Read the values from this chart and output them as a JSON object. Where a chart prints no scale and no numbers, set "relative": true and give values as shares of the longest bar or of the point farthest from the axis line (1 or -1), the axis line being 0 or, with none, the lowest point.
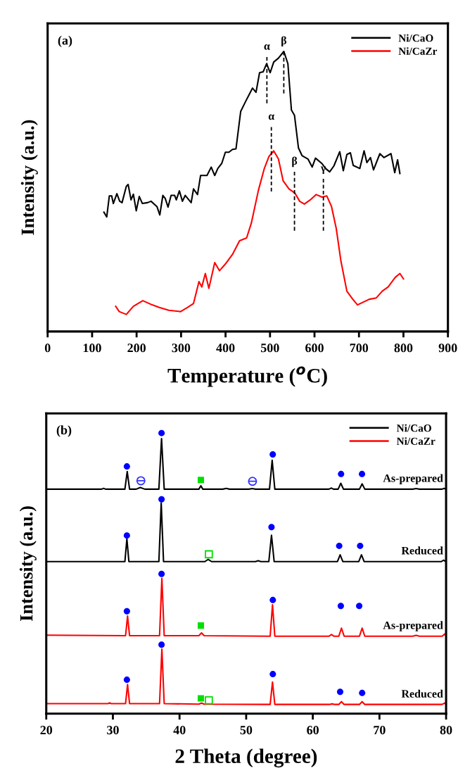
{
  "chart_data": [
    {
      "type": "line",
      "relative": true,
      "xlabel": "Temperature ($^{o}$C)",
      "ylabel": "Intensity (a.u.)",
      "xlim": [
        0,
        900
      ],
      "xticks": [
        0,
        100,
        200,
        300,
        400,
        500,
        600,
        700,
        800,
        900
      ],
      "tick_labels": "x",
      "legend": "top right",
      "grid": false,
      "annotations": [
        "(a)",
        {
          "text": "α",
          "x": 493,
          "y": 0.98
        },
        {
          "text": "β",
          "x": 531,
          "y": 1.0
        },
        {
          "text": "α",
          "x": 503,
          "y": 0.73
        },
        {
          "text": "β",
          "x": 555,
          "y": 0.57
        },
        {
          "text": "γ",
          "x": 620,
          "y": 0.545
        }
      ],
      "series": [
        {
          "name": "Ni/CaO",
          "color": "#000000",
          "x": [
            126.5,
            132.9,
            138.7,
            144,
            147.7,
            155.7,
            162,
            167.3,
            176.9,
            181,
            187.5,
            192.8,
            199.2,
            206,
            213,
            224.6,
            232.5,
            245.8,
            252.2,
            259.1,
            264.4,
            270.7,
            277.6,
            285.6,
            289.3,
            296.2,
            303.1,
            309.4,
            322.7,
            328,
            337,
            343.9,
            358.3,
            367.8,
            375.7,
            382.6,
            391.7,
            399.6,
            407.6,
            415.6,
            423.5,
            434.1,
            444.7,
            452.6,
            460.6,
            468.5,
            476.5,
            484.5,
            492.4,
            500.4,
            508.3,
            518.9,
            531.1,
            540.2,
            548.1,
            555,
            564,
            572,
            585.2,
            594.8,
            602.2,
            617.1,
            625,
            634.1,
            643.6,
            656.8,
            664.8,
            672.8,
            680.7,
            687.1,
            701.9,
            711.5,
            717.8,
            725.8,
            732.7,
            747,
            756,
            772,
            780.4,
            786.8,
            792
          ],
          "values": [
            0.426,
            0.409,
            0.484,
            0.484,
            0.457,
            0.492,
            0.465,
            0.46,
            0.518,
            0.525,
            0.47,
            0.49,
            0.431,
            0.482,
            0.457,
            0.46,
            0.465,
            0.446,
            0.416,
            0.486,
            0.475,
            0.444,
            0.486,
            0.486,
            0.47,
            0.502,
            0.465,
            0.486,
            0.46,
            0.509,
            0.489,
            0.557,
            0.557,
            0.587,
            0.557,
            0.582,
            0.601,
            0.64,
            0.64,
            0.65,
            0.652,
            0.786,
            0.82,
            0.844,
            0.869,
            0.854,
            0.924,
            0.927,
            0.956,
            0.924,
            0.962,
            0.976,
            1.0,
            0.956,
            0.791,
            0.772,
            0.655,
            0.628,
            0.616,
            0.587,
            0.619,
            0.599,
            0.582,
            0.57,
            0.591,
            0.642,
            0.574,
            0.632,
            0.638,
            0.593,
            0.582,
            0.645,
            0.603,
            0.621,
            0.577,
            0.635,
            0.621,
            0.635,
            0.567,
            0.613,
            0.564
          ]
        },
        {
          "name": "Ni/CaZr",
          "color": "#ff0000",
          "x": [
            153,
            161,
            176.9,
            192.8,
            214,
            235.2,
            251.1,
            272.4,
            298.9,
            314.8,
            328,
            340.3,
            346.6,
            354.6,
            362.5,
            375.7,
            386.4,
            399.6,
            415.6,
            431.5,
            447.4,
            458,
            473.9,
            487.2,
            497.7,
            508.3,
            518.9,
            529.5,
            542.7,
            556,
            566.6,
            577.2,
            590.5,
            603.8,
            617.1,
            627.7,
            638.3,
            648.9,
            659.5,
            672.8,
            686.1,
            696.7,
            709.8,
            723,
            739,
            752.3,
            765.5,
            781.4,
            792,
            800
          ],
          "values": [
            0.09,
            0.071,
            0.061,
            0.09,
            0.11,
            0.095,
            0.086,
            0.076,
            0.071,
            0.086,
            0.1,
            0.178,
            0.159,
            0.207,
            0.154,
            0.246,
            0.217,
            0.241,
            0.275,
            0.324,
            0.334,
            0.387,
            0.504,
            0.582,
            0.625,
            0.645,
            0.616,
            0.538,
            0.509,
            0.494,
            0.465,
            0.455,
            0.47,
            0.489,
            0.48,
            0.484,
            0.446,
            0.368,
            0.251,
            0.144,
            0.115,
            0.095,
            0.105,
            0.115,
            0.12,
            0.144,
            0.159,
            0.193,
            0.207,
            0.188
          ]
        },
        {
          "color": "#000000",
          "line_style": "dashed",
          "x": [
            493,
            493
          ],
          "values": [
            0.815,
            0.98
          ]
        },
        {
          "color": "#000000",
          "line_style": "dashed",
          "x": [
            531,
            531
          ],
          "values": [
            0.85,
            1.0
          ]
        },
        {
          "color": "#000000",
          "line_style": "dashed",
          "x": [
            503,
            503
          ],
          "values": [
            0.5,
            0.73
          ]
        },
        {
          "color": "#000000",
          "line_style": "dashed",
          "x": [
            555,
            555
          ],
          "values": [
            0.36,
            0.57
          ]
        },
        {
          "color": "#000000",
          "line_style": "dashed",
          "x": [
            620,
            620
          ],
          "values": [
            0.36,
            0.545
          ]
        }
      ]
    },
    {
      "type": "line",
      "relative": true,
      "xlabel": "2 Theta (degree)",
      "ylabel": "Intensity (a.u.)",
      "xlim": [
        20,
        80
      ],
      "xticks": [
        20,
        30,
        40,
        50,
        60,
        70,
        80
      ],
      "tick_labels": "x",
      "legend": "top right",
      "grid": false,
      "annotations": [
        "(b)",
        {
          "text": "As-prepared",
          "x": 80,
          "y": 0.8
        },
        {
          "text": "Reduced",
          "x": 80,
          "y": 0.542
        },
        {
          "text": "As-prepared",
          "x": 80,
          "y": 0.276
        },
        {
          "text": "Reduced",
          "x": 80,
          "y": 0.032
        }
      ],
      "series": [
        {
          "name": "Ni/CaO",
          "color": "#000000",
          "x": [
            20,
            28.3,
            28.6,
            28.9,
            31.8,
            32.15,
            32.5,
            33.5,
            34.1,
            34.8,
            36.9,
            37.3,
            37.7,
            42.9,
            43.2,
            43.5,
            46.5,
            47,
            47.5,
            50.4,
            50.9,
            51.4,
            53.5,
            53.9,
            54.3,
            62.4,
            62.8,
            63.1,
            63.8,
            64.2,
            64.6,
            67.0,
            67.4,
            67.8,
            75,
            75.5,
            76,
            79.4,
            79.7,
            80
          ],
          "values": [
            0.8,
            0.8,
            0.803,
            0.8,
            0.8,
            0.863,
            0.8,
            0.8,
            0.806,
            0.8,
            0.8,
            0.98,
            0.8,
            0.8,
            0.812,
            0.8,
            0.8,
            0.803,
            0.8,
            0.8,
            0.802,
            0.8,
            0.8,
            0.903,
            0.8,
            0.8,
            0.804,
            0.8,
            0.8,
            0.821,
            0.8,
            0.8,
            0.819,
            0.8,
            0.8,
            0.802,
            0.8,
            0.8,
            0.803,
            0.8
          ]
        },
        {
          "name": "Ni/CaO",
          "color": "#000000",
          "x": [
            20,
            31.8,
            32.1,
            32.4,
            36.9,
            37.25,
            37.6,
            43.8,
            44.3,
            44.8,
            51.4,
            51.8,
            52.2,
            53.4,
            53.8,
            54.2,
            63.7,
            64.1,
            64.5,
            66.9,
            67.3,
            67.7,
            79.3,
            79.6,
            80
          ],
          "values": [
            0.542,
            0.542,
            0.623,
            0.542,
            0.542,
            0.751,
            0.542,
            0.542,
            0.55,
            0.542,
            0.542,
            0.545,
            0.542,
            0.542,
            0.636,
            0.542,
            0.542,
            0.566,
            0.542,
            0.542,
            0.566,
            0.542,
            0.542,
            0.547,
            0.542
          ]
        },
        {
          "name": "Ni/CaZr",
          "color": "#ff0000",
          "x": [
            20,
            31.9,
            32.2,
            32.5,
            37.0,
            37.35,
            37.7,
            42.9,
            43.3,
            43.7,
            53.6,
            53.95,
            54.3,
            62.4,
            62.8,
            63.2,
            63.9,
            64.3,
            64.7,
            67.0,
            67.4,
            67.8,
            75.0,
            75.5,
            76.0,
            79.4,
            79.8,
            80
          ],
          "values": [
            0.28,
            0.278,
            0.348,
            0.278,
            0.278,
            0.482,
            0.278,
            0.278,
            0.288,
            0.278,
            0.276,
            0.388,
            0.276,
            0.276,
            0.282,
            0.276,
            0.276,
            0.305,
            0.276,
            0.276,
            0.305,
            0.276,
            0.276,
            0.279,
            0.276,
            0.276,
            0.284,
            0.276
          ]
        },
        {
          "name": "Ni/CaZr",
          "color": "#ff0000",
          "x": [
            20,
            29.3,
            29.5,
            29.7,
            31.9,
            32.2,
            32.5,
            37.0,
            37.35,
            37.7,
            42.9,
            43.3,
            43.7,
            53.6,
            53.95,
            54.3,
            62.5,
            62.9,
            63.3,
            63.9,
            64.3,
            64.7,
            67.0,
            67.4,
            67.8,
            79.4,
            79.8,
            80
          ],
          "values": [
            0.036,
            0.036,
            0.039,
            0.036,
            0.036,
            0.104,
            0.036,
            0.036,
            0.23,
            0.036,
            0.034,
            0.038,
            0.034,
            0.033,
            0.113,
            0.033,
            0.033,
            0.035,
            0.033,
            0.033,
            0.043,
            0.033,
            0.033,
            0.043,
            0.033,
            0.033,
            0.038,
            0.032
          ]
        },
        {
          "type": "scatter",
          "marker": "circle",
          "color": "#0000ff",
          "x": [
            32.1,
            37.3,
            53.99,
            64.24,
            67.38,
            32.1,
            37.3,
            53.8,
            63.96,
            67.1,
            32.1,
            37.3,
            54.0,
            64.2,
            66.96,
            32.1,
            37.3,
            54.0,
            64.1,
            67.4
          ],
          "values": [
            0.881,
            1.0,
            0.924,
            0.854,
            0.854,
            0.635,
            0.764,
            0.665,
            0.598,
            0.598,
            0.365,
            0.498,
            0.405,
            0.384,
            0.384,
            0.121,
            0.246,
            0.141,
            0.078,
            0.074
          ]
        },
        {
          "type": "scatter",
          "marker": "square",
          "color": "#00e000",
          "x": [
            43.2,
            43.2,
            43.2
          ],
          "values": [
            0.833,
            0.314,
            0.055
          ]
        },
        {
          "type": "scatter",
          "marker": "square-open",
          "color": "#00e000",
          "x": [
            44.4,
            44.4
          ],
          "values": [
            0.568,
            0.048
          ]
        },
        {
          "type": "scatter",
          "marker": "cross",
          "color": "#3333ff",
          "x": [
            34.2,
            50.95
          ],
          "values": [
            0.83,
            0.828
          ]
        }
      ]
    }
  ]
}
